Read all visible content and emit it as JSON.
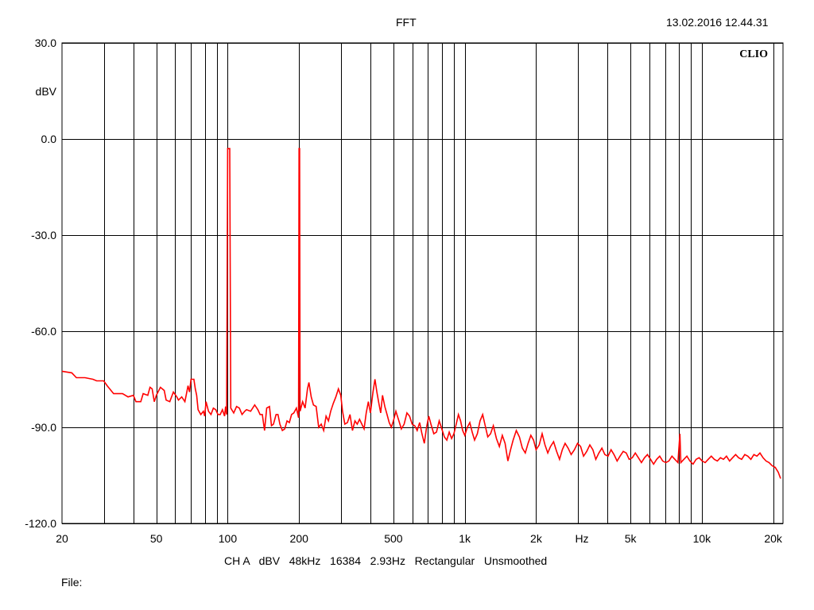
{
  "header": {
    "title": "FFT",
    "datetime": "13.02.2016 12.44.31",
    "brand": "CLIO"
  },
  "footer": {
    "settings": "CH A   dBV   48kHz   16384   2.93Hz   Rectangular   Unsmoothed",
    "file_label": "File:"
  },
  "colors": {
    "trace": "#ff0000",
    "grid": "#000000",
    "background": "#ffffff"
  },
  "chart_data": {
    "type": "line",
    "title": "FFT",
    "x_scale": "log",
    "xlim": [
      20,
      22000
    ],
    "ylim": [
      -120,
      30
    ],
    "xlabel": "Hz",
    "ylabel": "dBV",
    "grid": true,
    "x_gridlines": [
      30,
      40,
      50,
      60,
      70,
      80,
      90,
      100,
      200,
      300,
      400,
      500,
      600,
      700,
      800,
      900,
      1000,
      2000,
      3000,
      4000,
      5000,
      6000,
      7000,
      8000,
      9000,
      10000,
      20000
    ],
    "x_ticks": [
      {
        "value": 20,
        "label": "20"
      },
      {
        "value": 50,
        "label": "50"
      },
      {
        "value": 100,
        "label": "100"
      },
      {
        "value": 200,
        "label": "200"
      },
      {
        "value": 500,
        "label": "500"
      },
      {
        "value": 1000,
        "label": "1k"
      },
      {
        "value": 2000,
        "label": "2k"
      },
      {
        "value": 5000,
        "label": "5k"
      },
      {
        "value": 10000,
        "label": "10k"
      },
      {
        "value": 20000,
        "label": "20k"
      }
    ],
    "y_ticks": [
      {
        "value": 30,
        "label": "30.0"
      },
      {
        "value": 0,
        "label": "0.0"
      },
      {
        "value": -30,
        "label": "-30.0"
      },
      {
        "value": -60,
        "label": "-60.0"
      },
      {
        "value": -90,
        "label": "-90.0"
      },
      {
        "value": -120,
        "label": "-120.0"
      }
    ],
    "series": [
      {
        "color": "#ff0000",
        "points": [
          [
            20,
            -72.5
          ],
          [
            22,
            -73
          ],
          [
            23,
            -74.5
          ],
          [
            25,
            -74.5
          ],
          [
            27,
            -75
          ],
          [
            28,
            -75.5
          ],
          [
            30,
            -75.5
          ],
          [
            31,
            -77
          ],
          [
            33,
            -79.5
          ],
          [
            36,
            -79.5
          ],
          [
            38,
            -80.5
          ],
          [
            40,
            -80
          ],
          [
            41,
            -82
          ],
          [
            43,
            -82
          ],
          [
            44,
            -79.5
          ],
          [
            46,
            -80
          ],
          [
            47,
            -77.5
          ],
          [
            48,
            -78
          ],
          [
            49,
            -82
          ],
          [
            50,
            -80
          ],
          [
            52,
            -77.5
          ],
          [
            54,
            -78.5
          ],
          [
            55,
            -81.5
          ],
          [
            57,
            -82
          ],
          [
            59,
            -79
          ],
          [
            61,
            -80.5
          ],
          [
            62,
            -81.5
          ],
          [
            64,
            -80.5
          ],
          [
            66,
            -82
          ],
          [
            67,
            -79.5
          ],
          [
            68,
            -77
          ],
          [
            69,
            -79
          ],
          [
            70,
            -75
          ],
          [
            72,
            -75
          ],
          [
            73,
            -78
          ],
          [
            74,
            -80
          ],
          [
            75,
            -84.5
          ],
          [
            77,
            -86
          ],
          [
            79,
            -85
          ],
          [
            80,
            -86.5
          ],
          [
            81,
            -82
          ],
          [
            83,
            -85
          ],
          [
            85,
            -86
          ],
          [
            87,
            -84
          ],
          [
            89,
            -84.5
          ],
          [
            91,
            -86
          ],
          [
            93,
            -86
          ],
          [
            95,
            -84.5
          ],
          [
            97,
            -86.5
          ],
          [
            98,
            -83.5
          ],
          [
            99,
            -86
          ],
          [
            100,
            -3
          ],
          [
            102,
            -3
          ],
          [
            103,
            -84
          ],
          [
            106,
            -85.5
          ],
          [
            109,
            -83.5
          ],
          [
            112,
            -84
          ],
          [
            115,
            -86
          ],
          [
            118,
            -85
          ],
          [
            120,
            -84.5
          ],
          [
            125,
            -85
          ],
          [
            130,
            -83
          ],
          [
            134,
            -84.5
          ],
          [
            137,
            -86
          ],
          [
            140,
            -86
          ],
          [
            143,
            -91
          ],
          [
            146,
            -84
          ],
          [
            150,
            -83.5
          ],
          [
            153,
            -89.5
          ],
          [
            156,
            -89
          ],
          [
            160,
            -86
          ],
          [
            163,
            -86
          ],
          [
            166,
            -89
          ],
          [
            170,
            -91
          ],
          [
            174,
            -90.5
          ],
          [
            178,
            -88
          ],
          [
            182,
            -88.5
          ],
          [
            186,
            -86
          ],
          [
            190,
            -85.5
          ],
          [
            195,
            -84
          ],
          [
            199,
            -87
          ],
          [
            200,
            -3
          ],
          [
            201,
            -3
          ],
          [
            202,
            -85
          ],
          [
            207,
            -82
          ],
          [
            212,
            -84
          ],
          [
            217,
            -78
          ],
          [
            220,
            -76
          ],
          [
            225,
            -80.5
          ],
          [
            230,
            -83
          ],
          [
            236,
            -83.5
          ],
          [
            242,
            -90
          ],
          [
            248,
            -89
          ],
          [
            254,
            -91
          ],
          [
            260,
            -86.5
          ],
          [
            266,
            -88
          ],
          [
            272,
            -85
          ],
          [
            279,
            -82.5
          ],
          [
            286,
            -80.5
          ],
          [
            293,
            -78
          ],
          [
            300,
            -80
          ],
          [
            305,
            -85
          ],
          [
            312,
            -89
          ],
          [
            320,
            -88.5
          ],
          [
            328,
            -86
          ],
          [
            336,
            -91
          ],
          [
            344,
            -88
          ],
          [
            352,
            -89
          ],
          [
            360,
            -87.5
          ],
          [
            368,
            -89
          ],
          [
            376,
            -90.5
          ],
          [
            384,
            -85.5
          ],
          [
            392,
            -82
          ],
          [
            400,
            -85.5
          ],
          [
            410,
            -79
          ],
          [
            418,
            -75
          ],
          [
            426,
            -79
          ],
          [
            434,
            -82.5
          ],
          [
            442,
            -85.5
          ],
          [
            450,
            -80
          ],
          [
            460,
            -83.5
          ],
          [
            470,
            -86
          ],
          [
            480,
            -88.5
          ],
          [
            490,
            -90
          ],
          [
            500,
            -88
          ],
          [
            512,
            -85
          ],
          [
            525,
            -87.5
          ],
          [
            540,
            -90.5
          ],
          [
            555,
            -89
          ],
          [
            570,
            -85.5
          ],
          [
            585,
            -86.5
          ],
          [
            600,
            -89
          ],
          [
            615,
            -89.5
          ],
          [
            630,
            -91
          ],
          [
            645,
            -88.5
          ],
          [
            660,
            -92
          ],
          [
            675,
            -95
          ],
          [
            690,
            -90
          ],
          [
            705,
            -86.5
          ],
          [
            720,
            -89
          ],
          [
            740,
            -92
          ],
          [
            760,
            -91.5
          ],
          [
            780,
            -88
          ],
          [
            800,
            -90.5
          ],
          [
            820,
            -93
          ],
          [
            840,
            -94
          ],
          [
            860,
            -91.5
          ],
          [
            880,
            -93.5
          ],
          [
            900,
            -92
          ],
          [
            920,
            -89
          ],
          [
            940,
            -86
          ],
          [
            960,
            -88
          ],
          [
            980,
            -91
          ],
          [
            1000,
            -92.5
          ],
          [
            1025,
            -90
          ],
          [
            1050,
            -88.5
          ],
          [
            1075,
            -91.5
          ],
          [
            1100,
            -94
          ],
          [
            1130,
            -92
          ],
          [
            1160,
            -88
          ],
          [
            1190,
            -86
          ],
          [
            1220,
            -89.5
          ],
          [
            1250,
            -93
          ],
          [
            1285,
            -92
          ],
          [
            1320,
            -89.5
          ],
          [
            1360,
            -93.5
          ],
          [
            1400,
            -96
          ],
          [
            1440,
            -92.5
          ],
          [
            1480,
            -95
          ],
          [
            1520,
            -100.5
          ],
          [
            1560,
            -97
          ],
          [
            1600,
            -94
          ],
          [
            1650,
            -91
          ],
          [
            1700,
            -93
          ],
          [
            1750,
            -96.5
          ],
          [
            1800,
            -98
          ],
          [
            1850,
            -95
          ],
          [
            1900,
            -92.5
          ],
          [
            1950,
            -94
          ],
          [
            2000,
            -97
          ],
          [
            2060,
            -95.5
          ],
          [
            2120,
            -92
          ],
          [
            2180,
            -95.5
          ],
          [
            2240,
            -98
          ],
          [
            2300,
            -96
          ],
          [
            2370,
            -94.5
          ],
          [
            2440,
            -97.5
          ],
          [
            2510,
            -100
          ],
          [
            2580,
            -97
          ],
          [
            2650,
            -95
          ],
          [
            2730,
            -96.5
          ],
          [
            2810,
            -98.5
          ],
          [
            2900,
            -97
          ],
          [
            2990,
            -95
          ],
          [
            3080,
            -96
          ],
          [
            3170,
            -99
          ],
          [
            3270,
            -97.5
          ],
          [
            3370,
            -95.5
          ],
          [
            3470,
            -97
          ],
          [
            3570,
            -100
          ],
          [
            3680,
            -98
          ],
          [
            3790,
            -96.5
          ],
          [
            3900,
            -98.5
          ],
          [
            4020,
            -99
          ],
          [
            4140,
            -97
          ],
          [
            4260,
            -98.5
          ],
          [
            4390,
            -100.5
          ],
          [
            4520,
            -99
          ],
          [
            4660,
            -97.5
          ],
          [
            4800,
            -98
          ],
          [
            4940,
            -100
          ],
          [
            5090,
            -99.5
          ],
          [
            5240,
            -98
          ],
          [
            5400,
            -99.5
          ],
          [
            5560,
            -101
          ],
          [
            5730,
            -99.5
          ],
          [
            5900,
            -98.5
          ],
          [
            6080,
            -100
          ],
          [
            6260,
            -101.5
          ],
          [
            6450,
            -100
          ],
          [
            6640,
            -99
          ],
          [
            6840,
            -100.5
          ],
          [
            7050,
            -101
          ],
          [
            7260,
            -100.5
          ],
          [
            7480,
            -99
          ],
          [
            7700,
            -100
          ],
          [
            7930,
            -101
          ],
          [
            8080,
            -92
          ],
          [
            8160,
            -101
          ],
          [
            8400,
            -100
          ],
          [
            8650,
            -99
          ],
          [
            8910,
            -100.5
          ],
          [
            9180,
            -101.5
          ],
          [
            9460,
            -100
          ],
          [
            9740,
            -99.5
          ],
          [
            10030,
            -100.5
          ],
          [
            10330,
            -101
          ],
          [
            10640,
            -100
          ],
          [
            10960,
            -99
          ],
          [
            11290,
            -100
          ],
          [
            11630,
            -100.5
          ],
          [
            11980,
            -99.5
          ],
          [
            12340,
            -100
          ],
          [
            12710,
            -99
          ],
          [
            13090,
            -100.5
          ],
          [
            13480,
            -99.5
          ],
          [
            13890,
            -98.5
          ],
          [
            14300,
            -99.5
          ],
          [
            14730,
            -100
          ],
          [
            15170,
            -98.5
          ],
          [
            15630,
            -99
          ],
          [
            16100,
            -100
          ],
          [
            16580,
            -98.5
          ],
          [
            17080,
            -99
          ],
          [
            17590,
            -98
          ],
          [
            18120,
            -99.5
          ],
          [
            18660,
            -100.5
          ],
          [
            19220,
            -101
          ],
          [
            19800,
            -102
          ],
          [
            20390,
            -102.5
          ],
          [
            21000,
            -104
          ],
          [
            21500,
            -106
          ]
        ]
      }
    ]
  }
}
